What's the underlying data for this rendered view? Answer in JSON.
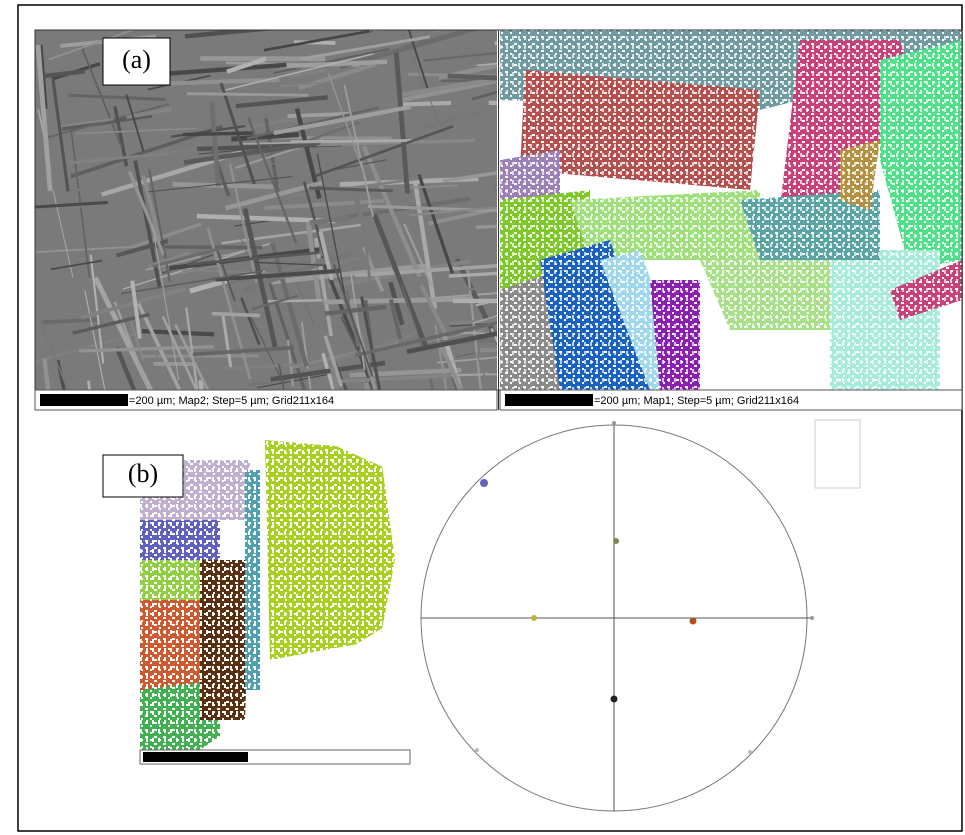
{
  "panel_a": {
    "label": "(a)",
    "left_caption": "=200 µm; Map2; Step=5 µm; Grid211x164",
    "right_caption": "=200 µm; Map1; Step=5 µm; Grid211x164"
  },
  "panel_b": {
    "label": "(b)"
  }
}
